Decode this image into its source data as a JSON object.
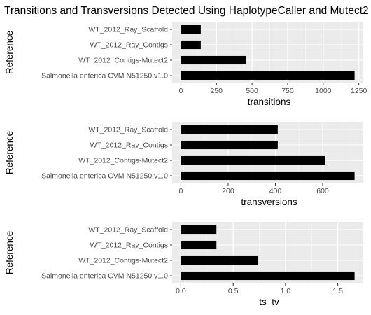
{
  "title": "Transitions and Transversions Detected Using HaplotypeCaller and Mutect2",
  "colors": {
    "panel_bg": "#ebebeb",
    "grid_major": "#ffffff",
    "grid_minor": "#f5f5f5",
    "bar": "#000000",
    "text": "#4d4d4d"
  },
  "chart_data": [
    {
      "type": "bar",
      "orientation": "horizontal",
      "categories": [
        "WT_2012_Ray_Scaffold",
        "WT_2012_Ray_Contigs",
        "WT_2012_Contigs-Mutect2",
        "Salmonella enterica CVM N51250 v1.0"
      ],
      "values": [
        140,
        140,
        455,
        1220
      ],
      "xlabel": "transitions",
      "ylabel": "Reference",
      "xlim": [
        -61,
        1281
      ],
      "ticks": [
        0,
        250,
        500,
        750,
        1000,
        1250
      ],
      "grid": true
    },
    {
      "type": "bar",
      "orientation": "horizontal",
      "categories": [
        "WT_2012_Ray_Scaffold",
        "WT_2012_Ray_Contigs",
        "WT_2012_Contigs-Mutect2",
        "Salmonella enterica CVM N51250 v1.0"
      ],
      "values": [
        410,
        410,
        610,
        735
      ],
      "xlabel": "transversions",
      "ylabel": "Reference",
      "xlim": [
        -36.75,
        771.75
      ],
      "ticks": [
        0,
        200,
        400,
        600
      ],
      "grid": true
    },
    {
      "type": "bar",
      "orientation": "horizontal",
      "categories": [
        "WT_2012_Ray_Scaffold",
        "WT_2012_Ray_Contigs",
        "WT_2012_Contigs-Mutect2",
        "Salmonella enterica CVM N51250 v1.0"
      ],
      "values": [
        0.34,
        0.34,
        0.74,
        1.66
      ],
      "xlabel": "ts_tv",
      "ylabel": "Reference",
      "xlim": [
        -0.083,
        1.743
      ],
      "ticks": [
        0.0,
        0.5,
        1.0,
        1.5
      ],
      "tick_labels": [
        "0.0",
        "0.5",
        "1.0",
        "1.5"
      ],
      "grid": true
    }
  ]
}
